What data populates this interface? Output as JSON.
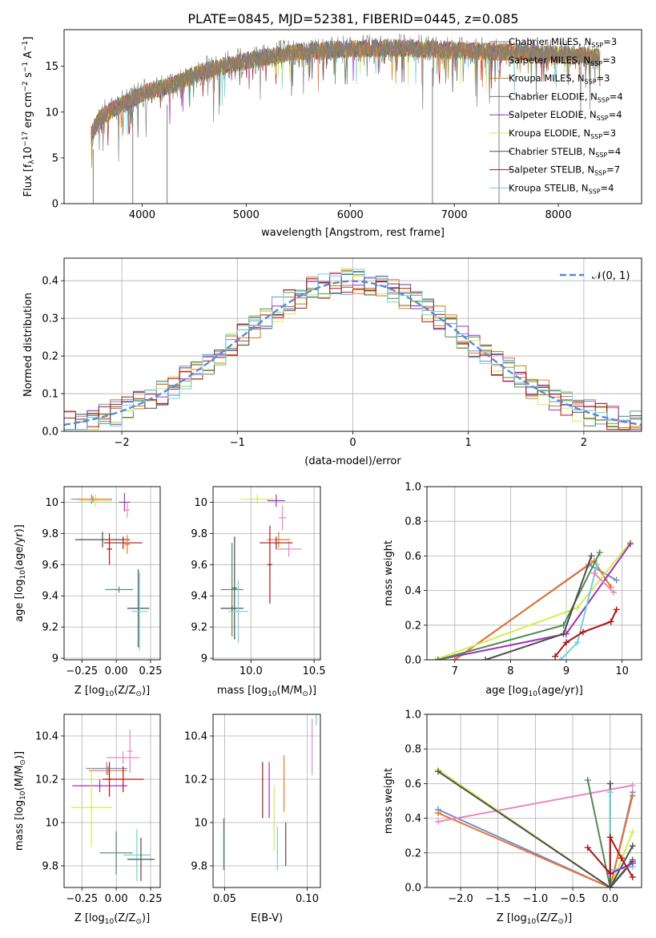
{
  "figure": {
    "title": "PLATE=0845, MJD=52381, FIBERID=0445, z=0.085"
  },
  "colors": {
    "chabrier_miles": "#6f8fd8",
    "salpeter_miles": "#e8762c",
    "kroupa_miles": "#b8860b",
    "chabrier_elodie": "#4f8a55",
    "salpeter_elodie": "#9b32b8",
    "kroupa_elodie": "#d4ec50",
    "chabrier_stelib": "#4d4d4d",
    "salpeter_stelib": "#b01515",
    "kroupa_stelib": "#6fd3db",
    "data": "#808080",
    "pink": "#e888c0"
  },
  "chart_data": [
    {
      "id": "spectrum",
      "type": "line",
      "xlabel": "wavelength [Angstrom, rest frame]",
      "ylabel": "Flux [f",
      "ylabel_parts": [
        "Flux [f",
        "λ",
        "10",
        "−17",
        " erg cm",
        "−2",
        " s",
        "−1",
        " A",
        "−1",
        "]"
      ],
      "xlim": [
        3250,
        8800
      ],
      "ylim": [
        0,
        19
      ],
      "xticks": [
        4000,
        5000,
        6000,
        7000,
        8000
      ],
      "yticks": [
        0,
        5,
        10,
        15
      ],
      "legend": "right",
      "legend_entries": [
        {
          "label": "Chabrier MILES, N",
          "sub": "SSP",
          "suffix": "=3",
          "color": "#808080"
        },
        {
          "label": "Salpeter MILES, N",
          "sub": "SSP",
          "suffix": "=3",
          "color": "#e8762c"
        },
        {
          "label": "Kroupa MILES, N",
          "sub": "SSP",
          "suffix": "=3",
          "color": "#b8860b"
        },
        {
          "label": "Chabrier ELODIE, N",
          "sub": "SSP",
          "suffix": "=4",
          "color": "#4f8a55"
        },
        {
          "label": "Salpeter ELODIE, N",
          "sub": "SSP",
          "suffix": "=4",
          "color": "#9b32b8"
        },
        {
          "label": "Kroupa ELODIE, N",
          "sub": "SSP",
          "suffix": "=3",
          "color": "#d4ec50"
        },
        {
          "label": "Chabrier STELIB, N",
          "sub": "SSP",
          "suffix": "=4",
          "color": "#4d4d4d"
        },
        {
          "label": "Salpeter STELIB, N",
          "sub": "SSP",
          "suffix": "=7",
          "color": "#b01515"
        },
        {
          "label": "Kroupa STELIB, N",
          "sub": "SSP",
          "suffix": "=4",
          "color": "#6fd3db"
        }
      ],
      "continuum": [
        [
          3510,
          7.5
        ],
        [
          3600,
          9.5
        ],
        [
          3800,
          10.8
        ],
        [
          4000,
          12.0
        ],
        [
          4300,
          13.0
        ],
        [
          4600,
          14.5
        ],
        [
          5000,
          15.6
        ],
        [
          5500,
          16.6
        ],
        [
          6000,
          16.9
        ],
        [
          6500,
          17.0
        ],
        [
          7000,
          16.7
        ],
        [
          7500,
          16.6
        ],
        [
          8000,
          16.3
        ],
        [
          8400,
          16.0
        ]
      ],
      "drops": [
        [
          3530,
          0
        ],
        [
          3910,
          0
        ],
        [
          4240,
          0
        ],
        [
          6790,
          0
        ],
        [
          7430,
          0
        ]
      ]
    },
    {
      "id": "residuals",
      "type": "histogram",
      "xlabel": "(data-model)/error",
      "ylabel": "Normed distribution",
      "xlim": [
        -2.5,
        2.5
      ],
      "ylim": [
        0,
        0.46
      ],
      "xticks": [
        -2,
        -1,
        0,
        1,
        2
      ],
      "xtick_labels": [
        "−2",
        "−1",
        "0",
        "1",
        "2"
      ],
      "yticks": [
        0.0,
        0.1,
        0.2,
        0.3,
        0.4
      ],
      "ytick_labels": [
        "0.0",
        "0.1",
        "0.2",
        "0.3",
        "0.4"
      ],
      "legend": "top-right",
      "legend_label": "𝒩(0, 1)",
      "bin_width": 0.1
    },
    {
      "id": "age_vs_Z",
      "type": "errorbar",
      "xlabel": "Z [log",
      "xlabel_sub": "10",
      "xlabel_rest": "(Z/Z",
      "xlabel_sun": "⊙",
      "xlabel_end": ")]",
      "ylabel": "age  [log",
      "ylabel_sub": "10",
      "ylabel_rest": "(age/yr)]",
      "xlim": [
        -0.38,
        0.32
      ],
      "ylim": [
        8.99,
        10.1
      ],
      "xticks": [
        -0.25,
        0.0,
        0.25
      ],
      "xtick_labels": [
        "−0.25",
        "0.00",
        "0.25"
      ],
      "yticks": [
        9.0,
        9.2,
        9.4,
        9.6,
        9.8,
        10.0
      ],
      "points": [
        {
          "x": -0.18,
          "y": 10.02,
          "xerr": 0.15,
          "yerr": 0.03,
          "c": "#6f8fd8"
        },
        {
          "x": -0.15,
          "y": 10.01,
          "xerr": 0.12,
          "yerr": 0.04,
          "c": "#d4ec50"
        },
        {
          "x": -0.17,
          "y": 10.02,
          "xerr": 0.13,
          "yerr": 0.02,
          "c": "#e8762c"
        },
        {
          "x": 0.06,
          "y": 10.0,
          "xerr": 0.04,
          "yerr": 0.06,
          "c": "#9b32b8"
        },
        {
          "x": 0.08,
          "y": 9.95,
          "xerr": 0.02,
          "yerr": 0.05,
          "c": "#e888c0"
        },
        {
          "x": -0.1,
          "y": 9.76,
          "xerr": 0.2,
          "yerr": 0.05,
          "c": "#4d4d4d"
        },
        {
          "x": 0.05,
          "y": 9.74,
          "xerr": 0.14,
          "yerr": 0.04,
          "c": "#b01515"
        },
        {
          "x": -0.05,
          "y": 9.7,
          "xerr": 0.02,
          "yerr": 0.1,
          "c": "#b01515"
        },
        {
          "x": 0.08,
          "y": 9.73,
          "xerr": 0.02,
          "yerr": 0.06,
          "c": "#e8762c"
        },
        {
          "x": 0.02,
          "y": 9.44,
          "xerr": 0.1,
          "yerr": 0.02,
          "c": "#4f8a55"
        },
        {
          "x": 0.16,
          "y": 9.32,
          "xerr": 0.08,
          "yerr": 0.25,
          "c": "#4d4d4d"
        },
        {
          "x": 0.17,
          "y": 9.3,
          "xerr": 0.06,
          "yerr": 0.25,
          "c": "#6fd3db"
        }
      ]
    },
    {
      "id": "age_vs_mass",
      "type": "errorbar",
      "xlabel": "mass [log",
      "xlabel_sub": "10",
      "xlabel_rest": "(M/M",
      "xlabel_sun": "⊙",
      "xlabel_end": ")]",
      "xlim": [
        9.7,
        10.55
      ],
      "ylim": [
        8.99,
        10.1
      ],
      "xticks": [
        10.0,
        10.5
      ],
      "xtick_labels": [
        "10.0",
        "10.5"
      ],
      "yticks": [
        9.0,
        9.2,
        9.4,
        9.6,
        9.8,
        10.0
      ],
      "points": [
        {
          "x": 10.05,
          "y": 10.02,
          "xerr": 0.13,
          "yerr": 0.03,
          "c": "#d4ec50"
        },
        {
          "x": 10.2,
          "y": 10.01,
          "xerr": 0.07,
          "yerr": 0.04,
          "c": "#9b32b8"
        },
        {
          "x": 10.25,
          "y": 9.9,
          "xerr": 0.03,
          "yerr": 0.08,
          "c": "#e888c0"
        },
        {
          "x": 10.3,
          "y": 9.7,
          "xerr": 0.1,
          "yerr": 0.05,
          "c": "#e888c0"
        },
        {
          "x": 10.22,
          "y": 9.76,
          "xerr": 0.09,
          "yerr": 0.05,
          "c": "#e8762c"
        },
        {
          "x": 10.2,
          "y": 9.74,
          "xerr": 0.13,
          "yerr": 0.04,
          "c": "#b01515"
        },
        {
          "x": 10.15,
          "y": 9.6,
          "xerr": 0.02,
          "yerr": 0.25,
          "c": "#b01515"
        },
        {
          "x": 9.85,
          "y": 9.44,
          "xerr": 0.09,
          "yerr": 0.3,
          "c": "#4f8a55"
        },
        {
          "x": 9.87,
          "y": 9.45,
          "xerr": 0.02,
          "yerr": 0.33,
          "c": "#4d4d4d"
        },
        {
          "x": 9.85,
          "y": 9.32,
          "xerr": 0.09,
          "yerr": 0.02,
          "c": "#4d4d4d"
        },
        {
          "x": 9.9,
          "y": 9.3,
          "xerr": 0.08,
          "yerr": 0.2,
          "c": "#6fd3db"
        }
      ]
    },
    {
      "id": "weight_vs_age",
      "type": "line",
      "xlabel": "age  [log",
      "xlabel_sub": "10",
      "xlabel_rest": "(age/yr)]",
      "ylabel": "mass weight",
      "xlim": [
        6.5,
        10.35
      ],
      "ylim": [
        0,
        1.0
      ],
      "xticks": [
        7,
        8,
        9,
        10
      ],
      "yticks": [
        0.0,
        0.2,
        0.4,
        0.6,
        0.8,
        1.0
      ],
      "ytick_labels": [
        "0.0",
        "0.2",
        "0.4",
        "0.6",
        "0.8",
        "1.0"
      ],
      "series": [
        {
          "c": "#6f8fd8",
          "pts": [
            [
              7.0,
              0.0
            ],
            [
              9.4,
              0.55
            ],
            [
              9.9,
              0.46
            ]
          ]
        },
        {
          "c": "#e8762c",
          "pts": [
            [
              7.0,
              0.0
            ],
            [
              9.5,
              0.57
            ],
            [
              9.8,
              0.42
            ]
          ]
        },
        {
          "c": "#d4ec50",
          "pts": [
            [
              6.65,
              0.0
            ],
            [
              9.2,
              0.3
            ],
            [
              10.15,
              0.68
            ]
          ]
        },
        {
          "c": "#9b32b8",
          "pts": [
            [
              6.7,
              0.0
            ],
            [
              9.0,
              0.15
            ],
            [
              10.15,
              0.67
            ]
          ]
        },
        {
          "c": "#4f8a55",
          "pts": [
            [
              6.7,
              0.0
            ],
            [
              8.95,
              0.2
            ],
            [
              9.6,
              0.62
            ]
          ]
        },
        {
          "c": "#4d4d4d",
          "pts": [
            [
              7.55,
              0.0
            ],
            [
              8.95,
              0.15
            ],
            [
              9.45,
              0.6
            ]
          ]
        },
        {
          "c": "#6fd3db",
          "pts": [
            [
              8.9,
              0.0
            ],
            [
              9.2,
              0.1
            ],
            [
              9.55,
              0.55
            ]
          ]
        },
        {
          "c": "#b01515",
          "pts": [
            [
              8.8,
              0.02
            ],
            [
              9.0,
              0.1
            ],
            [
              9.3,
              0.16
            ],
            [
              9.8,
              0.22
            ],
            [
              9.9,
              0.29
            ]
          ]
        },
        {
          "c": "#e888c0",
          "pts": [
            [
              9.5,
              0.5
            ],
            [
              9.85,
              0.39
            ]
          ]
        }
      ]
    },
    {
      "id": "mass_vs_Z",
      "type": "errorbar",
      "xlabel": "Z [log",
      "xlabel_sub": "10",
      "xlabel_rest": "(Z/Z",
      "xlabel_sun": "⊙",
      "xlabel_end": ")]",
      "ylabel": "mass [log",
      "ylabel_sub": "10",
      "ylabel_rest": "(M/M",
      "ylabel_sun": "⊙",
      "ylabel_end": ")]",
      "xlim": [
        -0.38,
        0.32
      ],
      "ylim": [
        9.7,
        10.5
      ],
      "xticks": [
        -0.25,
        0.0,
        0.25
      ],
      "xtick_labels": [
        "−0.25",
        "0.00",
        "0.25"
      ],
      "yticks": [
        9.8,
        10.0,
        10.2,
        10.4
      ],
      "points": [
        {
          "x": 0.05,
          "y": 10.3,
          "xerr": 0.12,
          "yerr": 0.03,
          "c": "#e888c0"
        },
        {
          "x": 0.1,
          "y": 10.33,
          "xerr": 0.02,
          "yerr": 0.1,
          "c": "#e888c0"
        },
        {
          "x": -0.07,
          "y": 10.25,
          "xerr": 0.15,
          "yerr": 0.03,
          "c": "#6f8fd8"
        },
        {
          "x": -0.06,
          "y": 10.24,
          "xerr": 0.14,
          "yerr": 0.02,
          "c": "#e8762c"
        },
        {
          "x": -0.12,
          "y": 10.17,
          "xerr": 0.2,
          "yerr": 0.03,
          "c": "#9b32b8"
        },
        {
          "x": 0.05,
          "y": 10.2,
          "xerr": 0.15,
          "yerr": 0.06,
          "c": "#b01515"
        },
        {
          "x": -0.05,
          "y": 10.2,
          "xerr": 0.02,
          "yerr": 0.08,
          "c": "#b01515"
        },
        {
          "x": -0.18,
          "y": 10.07,
          "xerr": 0.15,
          "yerr": 0.18,
          "c": "#d4ec50"
        },
        {
          "x": 0.0,
          "y": 9.86,
          "xerr": 0.12,
          "yerr": 0.1,
          "c": "#4f8a55"
        },
        {
          "x": 0.15,
          "y": 9.85,
          "xerr": 0.1,
          "yerr": 0.12,
          "c": "#6fd3db"
        },
        {
          "x": 0.18,
          "y": 9.83,
          "xerr": 0.1,
          "yerr": 0.1,
          "c": "#4d4d4d"
        }
      ]
    },
    {
      "id": "mass_vs_ebv",
      "type": "errorbar",
      "xlabel": "E(B-V)",
      "xlim": [
        0.043,
        0.108
      ],
      "ylim": [
        9.7,
        10.5
      ],
      "xticks": [
        0.05,
        0.1
      ],
      "xtick_labels": [
        "0.05",
        "0.10"
      ],
      "yticks": [
        9.8,
        10.0,
        10.2,
        10.4
      ],
      "points": [
        {
          "x": 0.0495,
          "y": 9.9,
          "xerr": 0,
          "yerr": 0.12,
          "c": "#4f8a55"
        },
        {
          "x": 0.073,
          "y": 10.15,
          "xerr": 0,
          "yerr": 0.13,
          "c": "#b01515"
        },
        {
          "x": 0.077,
          "y": 10.15,
          "xerr": 0,
          "yerr": 0.13,
          "c": "#9b32b8"
        },
        {
          "x": 0.08,
          "y": 10.02,
          "xerr": 0,
          "yerr": 0.15,
          "c": "#d4ec50"
        },
        {
          "x": 0.082,
          "y": 9.88,
          "xerr": 0,
          "yerr": 0.1,
          "c": "#6fd3db"
        },
        {
          "x": 0.086,
          "y": 10.18,
          "xerr": 0,
          "yerr": 0.13,
          "c": "#e8762c"
        },
        {
          "x": 0.087,
          "y": 9.9,
          "xerr": 0,
          "yerr": 0.1,
          "c": "#4d4d4d"
        },
        {
          "x": 0.103,
          "y": 10.35,
          "xerr": 0,
          "yerr": 0.13,
          "c": "#e888c0"
        },
        {
          "x": 0.1055,
          "y": 10.5,
          "xerr": 0,
          "yerr": 0.05,
          "c": "#6fd3db"
        }
      ]
    },
    {
      "id": "weight_vs_Z",
      "type": "line",
      "xlabel": "Z [log",
      "xlabel_sub": "10",
      "xlabel_rest": "(Z/Z",
      "xlabel_sun": "⊙",
      "xlabel_end": ")]",
      "ylabel": "mass weight",
      "xlim": [
        -2.45,
        0.42
      ],
      "ylim": [
        0,
        1.0
      ],
      "xticks": [
        -2.0,
        -1.5,
        -1.0,
        -0.5,
        0.0
      ],
      "xtick_labels": [
        "−2.0",
        "−1.5",
        "−1.0",
        "−0.5",
        "0.0"
      ],
      "yticks": [
        0.0,
        0.2,
        0.4,
        0.6,
        0.8,
        1.0
      ],
      "ytick_labels": [
        "0.0",
        "0.2",
        "0.4",
        "0.6",
        "0.8",
        "1.0"
      ],
      "series": [
        {
          "c": "#6f8fd8",
          "pts": [
            [
              -2.3,
              0.45
            ],
            [
              0.0,
              0.0
            ],
            [
              0.3,
              0.55
            ]
          ]
        },
        {
          "c": "#e8762c",
          "pts": [
            [
              -2.3,
              0.43
            ],
            [
              0.0,
              0.0
            ],
            [
              0.3,
              0.53
            ]
          ]
        },
        {
          "c": "#e888c0",
          "pts": [
            [
              -2.3,
              0.38
            ],
            [
              0.3,
              0.59
            ]
          ]
        },
        {
          "c": "#d4ec50",
          "pts": [
            [
              -2.3,
              0.68
            ],
            [
              0.0,
              0.0
            ],
            [
              0.3,
              0.32
            ]
          ]
        },
        {
          "c": "#4d4d4d",
          "pts": [
            [
              -2.3,
              0.67
            ],
            [
              0.0,
              0.0
            ],
            [
              0.3,
              0.24
            ]
          ]
        },
        {
          "c": "#4f8a55",
          "pts": [
            [
              -0.3,
              0.62
            ],
            [
              0.0,
              0.0
            ],
            [
              0.3,
              0.16
            ]
          ]
        },
        {
          "c": "#4d4d4d",
          "pts": [
            [
              0.0,
              0.6
            ],
            [
              0.0,
              0.0
            ],
            [
              0.3,
              0.15
            ]
          ]
        },
        {
          "c": "#6fd3db",
          "pts": [
            [
              0.0,
              0.55
            ],
            [
              0.0,
              0.1
            ],
            [
              0.3,
              0.12
            ]
          ]
        },
        {
          "c": "#9b32b8",
          "pts": [
            [
              0.0,
              0.08
            ],
            [
              0.3,
              0.14
            ]
          ]
        },
        {
          "c": "#b01515",
          "pts": [
            [
              -0.3,
              0.23
            ],
            [
              0.0,
              0.08
            ],
            [
              0.0,
              0.29
            ],
            [
              0.15,
              0.17
            ],
            [
              0.3,
              0.06
            ]
          ]
        }
      ]
    }
  ]
}
